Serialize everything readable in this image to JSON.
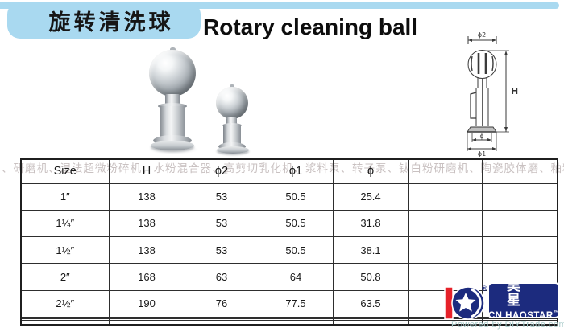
{
  "header": {
    "title_zh": "旋转清洗球",
    "title_en": "Rotary cleaning ball"
  },
  "diagram": {
    "phi2_label": "ϕ2",
    "height_label": "H",
    "phi_label": "ϕ",
    "phi1_label": "ϕ1"
  },
  "watermark": "、研磨机、湿法超微粉碎机、水粉混合器、高剪切乳化机、浆料泵、转子泵、钛白粉研磨机、陶瓷胶体磨、釉料胶体磨、立式胶体磨、",
  "table": {
    "headers": [
      "Size",
      "H",
      "ϕ2",
      "ϕ1",
      "ϕ",
      "",
      ""
    ],
    "rows": [
      [
        "1″",
        "138",
        "53",
        "50.5",
        "25.4",
        "",
        ""
      ],
      [
        "1¼″",
        "138",
        "53",
        "50.5",
        "31.8",
        "",
        ""
      ],
      [
        "1½″",
        "138",
        "53",
        "50.5",
        "38.1",
        "",
        ""
      ],
      [
        "2″",
        "168",
        "63",
        "64",
        "50.8",
        "",
        ""
      ],
      [
        "2½″",
        "190",
        "76",
        "77.5",
        "63.5",
        "",
        ""
      ],
      [
        "",
        "",
        "",
        "",
        "",
        "",
        ""
      ],
      [
        "",
        "",
        "",
        "",
        "",
        "",
        ""
      ],
      [
        "",
        "",
        "",
        "",
        "",
        "",
        ""
      ],
      [
        "",
        "",
        "",
        "",
        "",
        "",
        ""
      ]
    ]
  },
  "logo": {
    "name_zh": "昊星",
    "name_en": "CN.HAOSTAR",
    "trademark": "™",
    "registered": "®",
    "powered_by": "Powered by DIYTrade.com"
  },
  "colors": {
    "accent_blue": "#a9d9f0",
    "logo_blue": "#1c2b7e",
    "logo_red": "#e62129",
    "watermark_gray": "#c9c1c1",
    "table_border": "#2e2e2e"
  }
}
